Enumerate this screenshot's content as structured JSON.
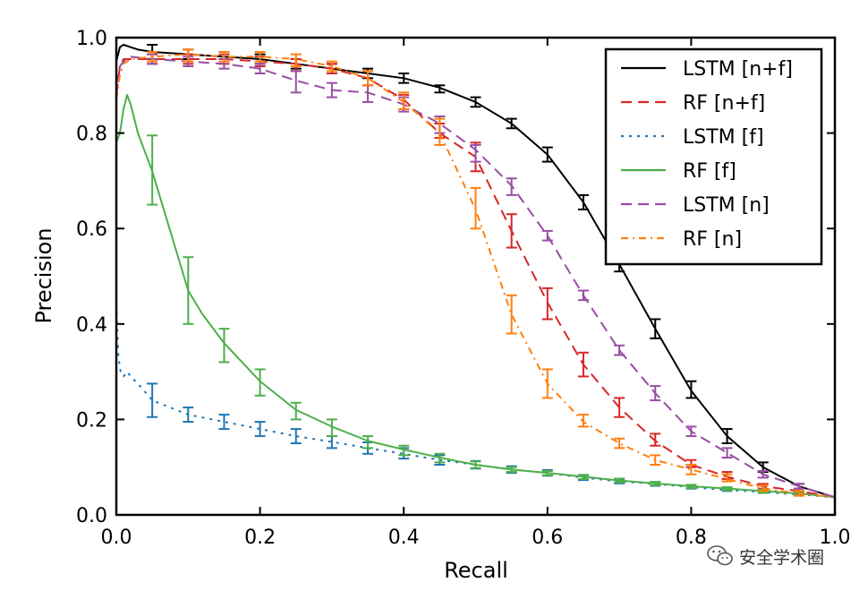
{
  "chart_data": {
    "type": "line",
    "xlabel": "Recall",
    "ylabel": "Precision",
    "xlim": [
      0.0,
      1.0
    ],
    "ylim": [
      0.0,
      1.0
    ],
    "xticks": [
      "0.0",
      "0.2",
      "0.4",
      "0.6",
      "0.8",
      "1.0"
    ],
    "yticks": [
      "0.0",
      "0.2",
      "0.4",
      "0.6",
      "0.8",
      "1.0"
    ],
    "grid": false,
    "legend_position": "top-right",
    "series": [
      {
        "name": "LSTM [n+f]",
        "color": "#000000",
        "style": "solid",
        "x": [
          0.0,
          0.005,
          0.01,
          0.02,
          0.03,
          0.05,
          0.1,
          0.15,
          0.2,
          0.25,
          0.3,
          0.35,
          0.4,
          0.45,
          0.5,
          0.55,
          0.6,
          0.65,
          0.7,
          0.75,
          0.8,
          0.85,
          0.9,
          0.95,
          1.0
        ],
        "y": [
          0.95,
          0.98,
          0.985,
          0.98,
          0.975,
          0.97,
          0.965,
          0.96,
          0.955,
          0.945,
          0.935,
          0.925,
          0.915,
          0.895,
          0.865,
          0.82,
          0.755,
          0.655,
          0.525,
          0.39,
          0.26,
          0.165,
          0.1,
          0.06,
          0.037
        ],
        "err_x": [
          0.05,
          0.1,
          0.15,
          0.2,
          0.25,
          0.3,
          0.35,
          0.4,
          0.45,
          0.5,
          0.55,
          0.6,
          0.65,
          0.7,
          0.75,
          0.8,
          0.85,
          0.9,
          0.95
        ],
        "err_lo": [
          0.955,
          0.955,
          0.955,
          0.945,
          0.935,
          0.925,
          0.915,
          0.905,
          0.885,
          0.855,
          0.81,
          0.74,
          0.64,
          0.51,
          0.37,
          0.245,
          0.15,
          0.09,
          0.05
        ],
        "err_hi": [
          0.985,
          0.975,
          0.97,
          0.965,
          0.955,
          0.945,
          0.935,
          0.925,
          0.9,
          0.875,
          0.83,
          0.77,
          0.67,
          0.54,
          0.41,
          0.28,
          0.18,
          0.11,
          0.065
        ]
      },
      {
        "name": "RF [n+f]",
        "color": "#d62728",
        "style": "dashed",
        "x": [
          0.0,
          0.005,
          0.01,
          0.02,
          0.05,
          0.1,
          0.15,
          0.2,
          0.25,
          0.3,
          0.35,
          0.4,
          0.45,
          0.5,
          0.55,
          0.6,
          0.65,
          0.7,
          0.75,
          0.8,
          0.85,
          0.9,
          0.95,
          1.0
        ],
        "y": [
          0.88,
          0.94,
          0.955,
          0.955,
          0.955,
          0.955,
          0.955,
          0.95,
          0.945,
          0.935,
          0.915,
          0.87,
          0.8,
          0.75,
          0.595,
          0.445,
          0.315,
          0.225,
          0.155,
          0.105,
          0.08,
          0.06,
          0.05,
          0.037
        ],
        "err_x": [
          0.05,
          0.1,
          0.15,
          0.2,
          0.25,
          0.3,
          0.35,
          0.4,
          0.45,
          0.5,
          0.55,
          0.6,
          0.65,
          0.7,
          0.75,
          0.8,
          0.85,
          0.9,
          0.95
        ],
        "err_lo": [
          0.945,
          0.945,
          0.945,
          0.94,
          0.93,
          0.925,
          0.9,
          0.85,
          0.79,
          0.72,
          0.56,
          0.41,
          0.29,
          0.205,
          0.145,
          0.1,
          0.075,
          0.055,
          0.045
        ],
        "err_hi": [
          0.965,
          0.965,
          0.965,
          0.96,
          0.955,
          0.945,
          0.93,
          0.88,
          0.82,
          0.78,
          0.63,
          0.475,
          0.34,
          0.245,
          0.17,
          0.115,
          0.09,
          0.065,
          0.055
        ]
      },
      {
        "name": "LSTM [f]",
        "color": "#1f77b4",
        "style": "dashdot",
        "x": [
          0.0,
          0.003,
          0.006,
          0.01,
          0.015,
          0.02,
          0.03,
          0.05,
          0.1,
          0.15,
          0.2,
          0.25,
          0.3,
          0.35,
          0.4,
          0.45,
          0.5,
          0.55,
          0.6,
          0.65,
          0.7,
          0.75,
          0.8,
          0.85,
          0.9,
          0.95,
          1.0
        ],
        "y": [
          0.44,
          0.33,
          0.3,
          0.29,
          0.3,
          0.29,
          0.275,
          0.24,
          0.21,
          0.195,
          0.18,
          0.165,
          0.153,
          0.14,
          0.128,
          0.115,
          0.105,
          0.095,
          0.088,
          0.078,
          0.07,
          0.065,
          0.058,
          0.052,
          0.048,
          0.043,
          0.037
        ],
        "err_x": [
          0.05,
          0.1,
          0.15,
          0.2,
          0.25,
          0.3,
          0.35,
          0.4,
          0.45,
          0.5,
          0.55,
          0.6,
          0.65,
          0.7,
          0.75,
          0.8,
          0.85,
          0.9,
          0.95
        ],
        "err_lo": [
          0.205,
          0.195,
          0.18,
          0.165,
          0.15,
          0.14,
          0.128,
          0.118,
          0.105,
          0.097,
          0.088,
          0.082,
          0.073,
          0.066,
          0.061,
          0.055,
          0.05,
          0.046,
          0.041
        ],
        "err_hi": [
          0.275,
          0.225,
          0.21,
          0.195,
          0.18,
          0.165,
          0.152,
          0.14,
          0.125,
          0.113,
          0.102,
          0.094,
          0.083,
          0.074,
          0.069,
          0.062,
          0.055,
          0.05,
          0.045
        ]
      },
      {
        "name": "RF [f]",
        "color": "#4daf4a",
        "style": "solid",
        "x": [
          0.0,
          0.005,
          0.01,
          0.015,
          0.02,
          0.03,
          0.05,
          0.07,
          0.1,
          0.12,
          0.15,
          0.2,
          0.25,
          0.3,
          0.35,
          0.4,
          0.45,
          0.5,
          0.55,
          0.6,
          0.65,
          0.7,
          0.75,
          0.8,
          0.85,
          0.9,
          0.95,
          1.0
        ],
        "y": [
          0.78,
          0.8,
          0.85,
          0.88,
          0.86,
          0.8,
          0.72,
          0.62,
          0.47,
          0.42,
          0.36,
          0.28,
          0.22,
          0.185,
          0.155,
          0.137,
          0.12,
          0.105,
          0.095,
          0.088,
          0.08,
          0.072,
          0.066,
          0.06,
          0.055,
          0.05,
          0.045,
          0.037
        ],
        "err_x": [
          0.05,
          0.1,
          0.15,
          0.2,
          0.25,
          0.3,
          0.35,
          0.4,
          0.45,
          0.5,
          0.55,
          0.6,
          0.65,
          0.7,
          0.75,
          0.8,
          0.85,
          0.9,
          0.95
        ],
        "err_lo": [
          0.65,
          0.4,
          0.32,
          0.25,
          0.2,
          0.165,
          0.14,
          0.125,
          0.11,
          0.098,
          0.09,
          0.083,
          0.075,
          0.068,
          0.062,
          0.056,
          0.051,
          0.046,
          0.041
        ],
        "err_hi": [
          0.795,
          0.54,
          0.39,
          0.305,
          0.235,
          0.2,
          0.165,
          0.145,
          0.128,
          0.112,
          0.1,
          0.092,
          0.084,
          0.076,
          0.069,
          0.063,
          0.058,
          0.053,
          0.048
        ]
      },
      {
        "name": "LSTM [n]",
        "color": "#984ea3",
        "style": "dashed",
        "x": [
          0.0,
          0.005,
          0.01,
          0.02,
          0.05,
          0.1,
          0.15,
          0.2,
          0.25,
          0.3,
          0.35,
          0.4,
          0.45,
          0.5,
          0.55,
          0.6,
          0.65,
          0.7,
          0.75,
          0.8,
          0.85,
          0.9,
          0.95,
          1.0
        ],
        "y": [
          0.9,
          0.94,
          0.95,
          0.96,
          0.955,
          0.95,
          0.945,
          0.935,
          0.91,
          0.89,
          0.885,
          0.86,
          0.82,
          0.765,
          0.69,
          0.585,
          0.46,
          0.345,
          0.255,
          0.175,
          0.13,
          0.085,
          0.06,
          0.037
        ],
        "err_x": [
          0.05,
          0.1,
          0.15,
          0.2,
          0.25,
          0.3,
          0.35,
          0.4,
          0.45,
          0.5,
          0.55,
          0.6,
          0.65,
          0.7,
          0.75,
          0.8,
          0.85,
          0.9,
          0.95
        ],
        "err_lo": [
          0.945,
          0.94,
          0.935,
          0.925,
          0.885,
          0.875,
          0.865,
          0.845,
          0.8,
          0.74,
          0.67,
          0.575,
          0.45,
          0.335,
          0.24,
          0.165,
          0.12,
          0.078,
          0.055
        ],
        "err_hi": [
          0.965,
          0.96,
          0.955,
          0.945,
          0.93,
          0.905,
          0.9,
          0.875,
          0.835,
          0.775,
          0.705,
          0.595,
          0.47,
          0.355,
          0.27,
          0.185,
          0.14,
          0.092,
          0.065
        ]
      },
      {
        "name": "RF [n]",
        "color": "#ff7f0e",
        "style": "dotdash",
        "x": [
          0.0,
          0.005,
          0.01,
          0.02,
          0.05,
          0.1,
          0.15,
          0.2,
          0.25,
          0.3,
          0.35,
          0.4,
          0.45,
          0.5,
          0.55,
          0.6,
          0.65,
          0.7,
          0.75,
          0.8,
          0.85,
          0.9,
          0.95,
          1.0
        ],
        "y": [
          0.87,
          0.92,
          0.945,
          0.955,
          0.96,
          0.965,
          0.96,
          0.96,
          0.955,
          0.94,
          0.915,
          0.865,
          0.8,
          0.64,
          0.42,
          0.275,
          0.195,
          0.15,
          0.115,
          0.095,
          0.075,
          0.055,
          0.045,
          0.037
        ],
        "err_x": [
          0.05,
          0.1,
          0.15,
          0.2,
          0.25,
          0.3,
          0.35,
          0.4,
          0.45,
          0.5,
          0.55,
          0.6,
          0.65,
          0.7,
          0.75,
          0.8,
          0.85,
          0.9,
          0.95
        ],
        "err_lo": [
          0.95,
          0.95,
          0.95,
          0.95,
          0.94,
          0.93,
          0.9,
          0.85,
          0.775,
          0.6,
          0.38,
          0.245,
          0.185,
          0.14,
          0.105,
          0.085,
          0.07,
          0.05,
          0.04
        ],
        "err_hi": [
          0.97,
          0.975,
          0.97,
          0.97,
          0.965,
          0.95,
          0.93,
          0.885,
          0.83,
          0.685,
          0.46,
          0.305,
          0.21,
          0.16,
          0.125,
          0.105,
          0.085,
          0.062,
          0.05
        ]
      }
    ]
  },
  "watermark": {
    "text": "安全学术圈",
    "icon": "wechat-icon"
  }
}
